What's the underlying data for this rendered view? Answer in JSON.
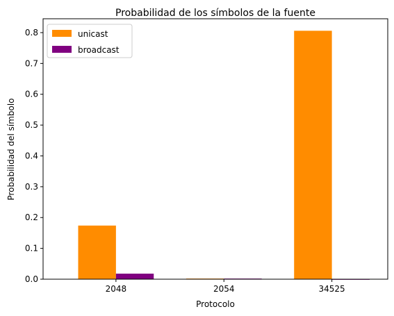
{
  "chart_data": {
    "type": "bar",
    "title": "Probabilidad de los símbolos de la fuente",
    "xlabel": "Protocolo",
    "ylabel": "Probabilidad del símbolo",
    "categories": [
      "2048",
      "2054",
      "34525"
    ],
    "series": [
      {
        "name": "unicast",
        "color": "#ff8c00",
        "values": [
          0.174,
          0.002,
          0.806
        ]
      },
      {
        "name": "broadcast",
        "color": "#800080",
        "values": [
          0.018,
          0.002,
          0.0
        ]
      }
    ],
    "ylim": [
      0,
      0.845
    ],
    "yticks": [
      "0.0",
      "0.1",
      "0.2",
      "0.3",
      "0.4",
      "0.5",
      "0.6",
      "0.7",
      "0.8"
    ],
    "grid": false,
    "legend_position": "top-left"
  }
}
